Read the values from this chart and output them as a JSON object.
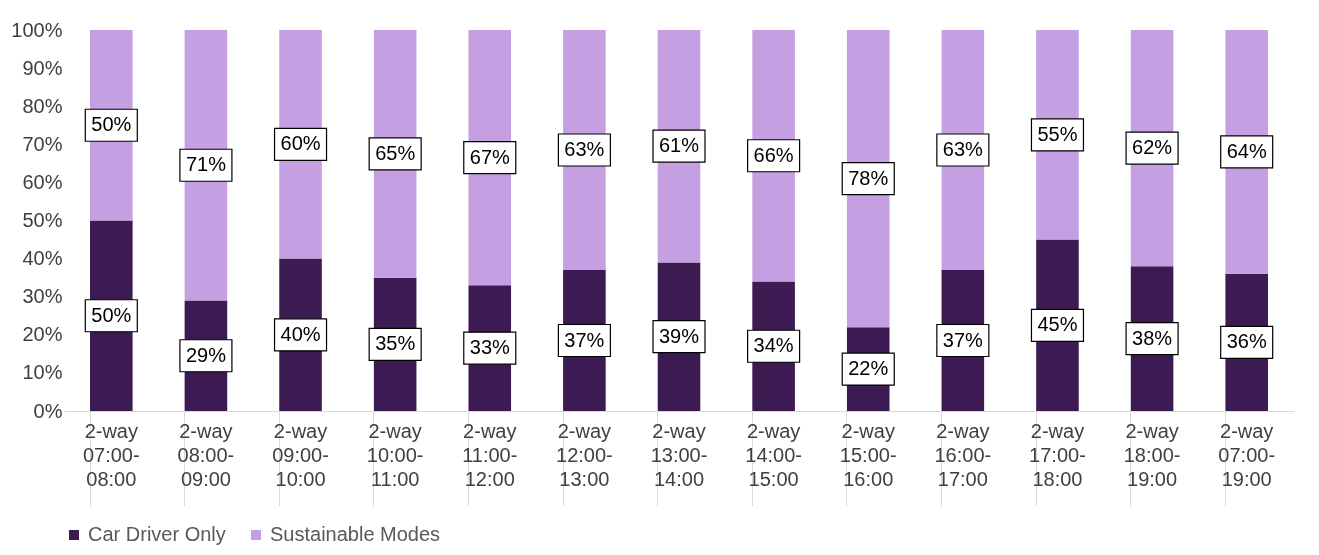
{
  "chart_data": {
    "type": "bar",
    "stacked": true,
    "categories": [
      "2-way 07:00-08:00",
      "2-way 08:00-09:00",
      "2-way 09:00-10:00",
      "2-way 10:00-11:00",
      "2-way 11:00-12:00",
      "2-way 12:00-13:00",
      "2-way 13:00-14:00",
      "2-way 14:00-15:00",
      "2-way 15:00-16:00",
      "2-way 16:00-17:00",
      "2-way 17:00-18:00",
      "2-way 18:00-19:00",
      "2-way 07:00-19:00"
    ],
    "series": [
      {
        "name": "Car Driver Only",
        "color": "#3c1a52",
        "values": [
          50,
          29,
          40,
          35,
          33,
          37,
          39,
          34,
          22,
          37,
          45,
          38,
          36
        ]
      },
      {
        "name": "Sustainable Modes",
        "color": "#c49fe2",
        "values": [
          50,
          71,
          60,
          65,
          67,
          63,
          61,
          66,
          78,
          63,
          55,
          62,
          64
        ]
      }
    ],
    "value_labels": [
      [
        "50%",
        "29%",
        "40%",
        "35%",
        "33%",
        "37%",
        "39%",
        "34%",
        "22%",
        "37%",
        "45%",
        "38%",
        "36%"
      ],
      [
        "50%",
        "71%",
        "60%",
        "65%",
        "67%",
        "63%",
        "61%",
        "66%",
        "78%",
        "63%",
        "55%",
        "62%",
        "64%"
      ]
    ],
    "ylim": [
      0,
      100
    ],
    "yticks": [
      {
        "value": 0,
        "label": "0%"
      },
      {
        "value": 10,
        "label": "10%"
      },
      {
        "value": 20,
        "label": "20%"
      },
      {
        "value": 30,
        "label": "30%"
      },
      {
        "value": 40,
        "label": "40%"
      },
      {
        "value": 50,
        "label": "50%"
      },
      {
        "value": 60,
        "label": "60%"
      },
      {
        "value": 70,
        "label": "70%"
      },
      {
        "value": 80,
        "label": "80%"
      },
      {
        "value": 90,
        "label": "90%"
      },
      {
        "value": 100,
        "label": "100%"
      }
    ],
    "grid": false,
    "legend": "bottom"
  }
}
